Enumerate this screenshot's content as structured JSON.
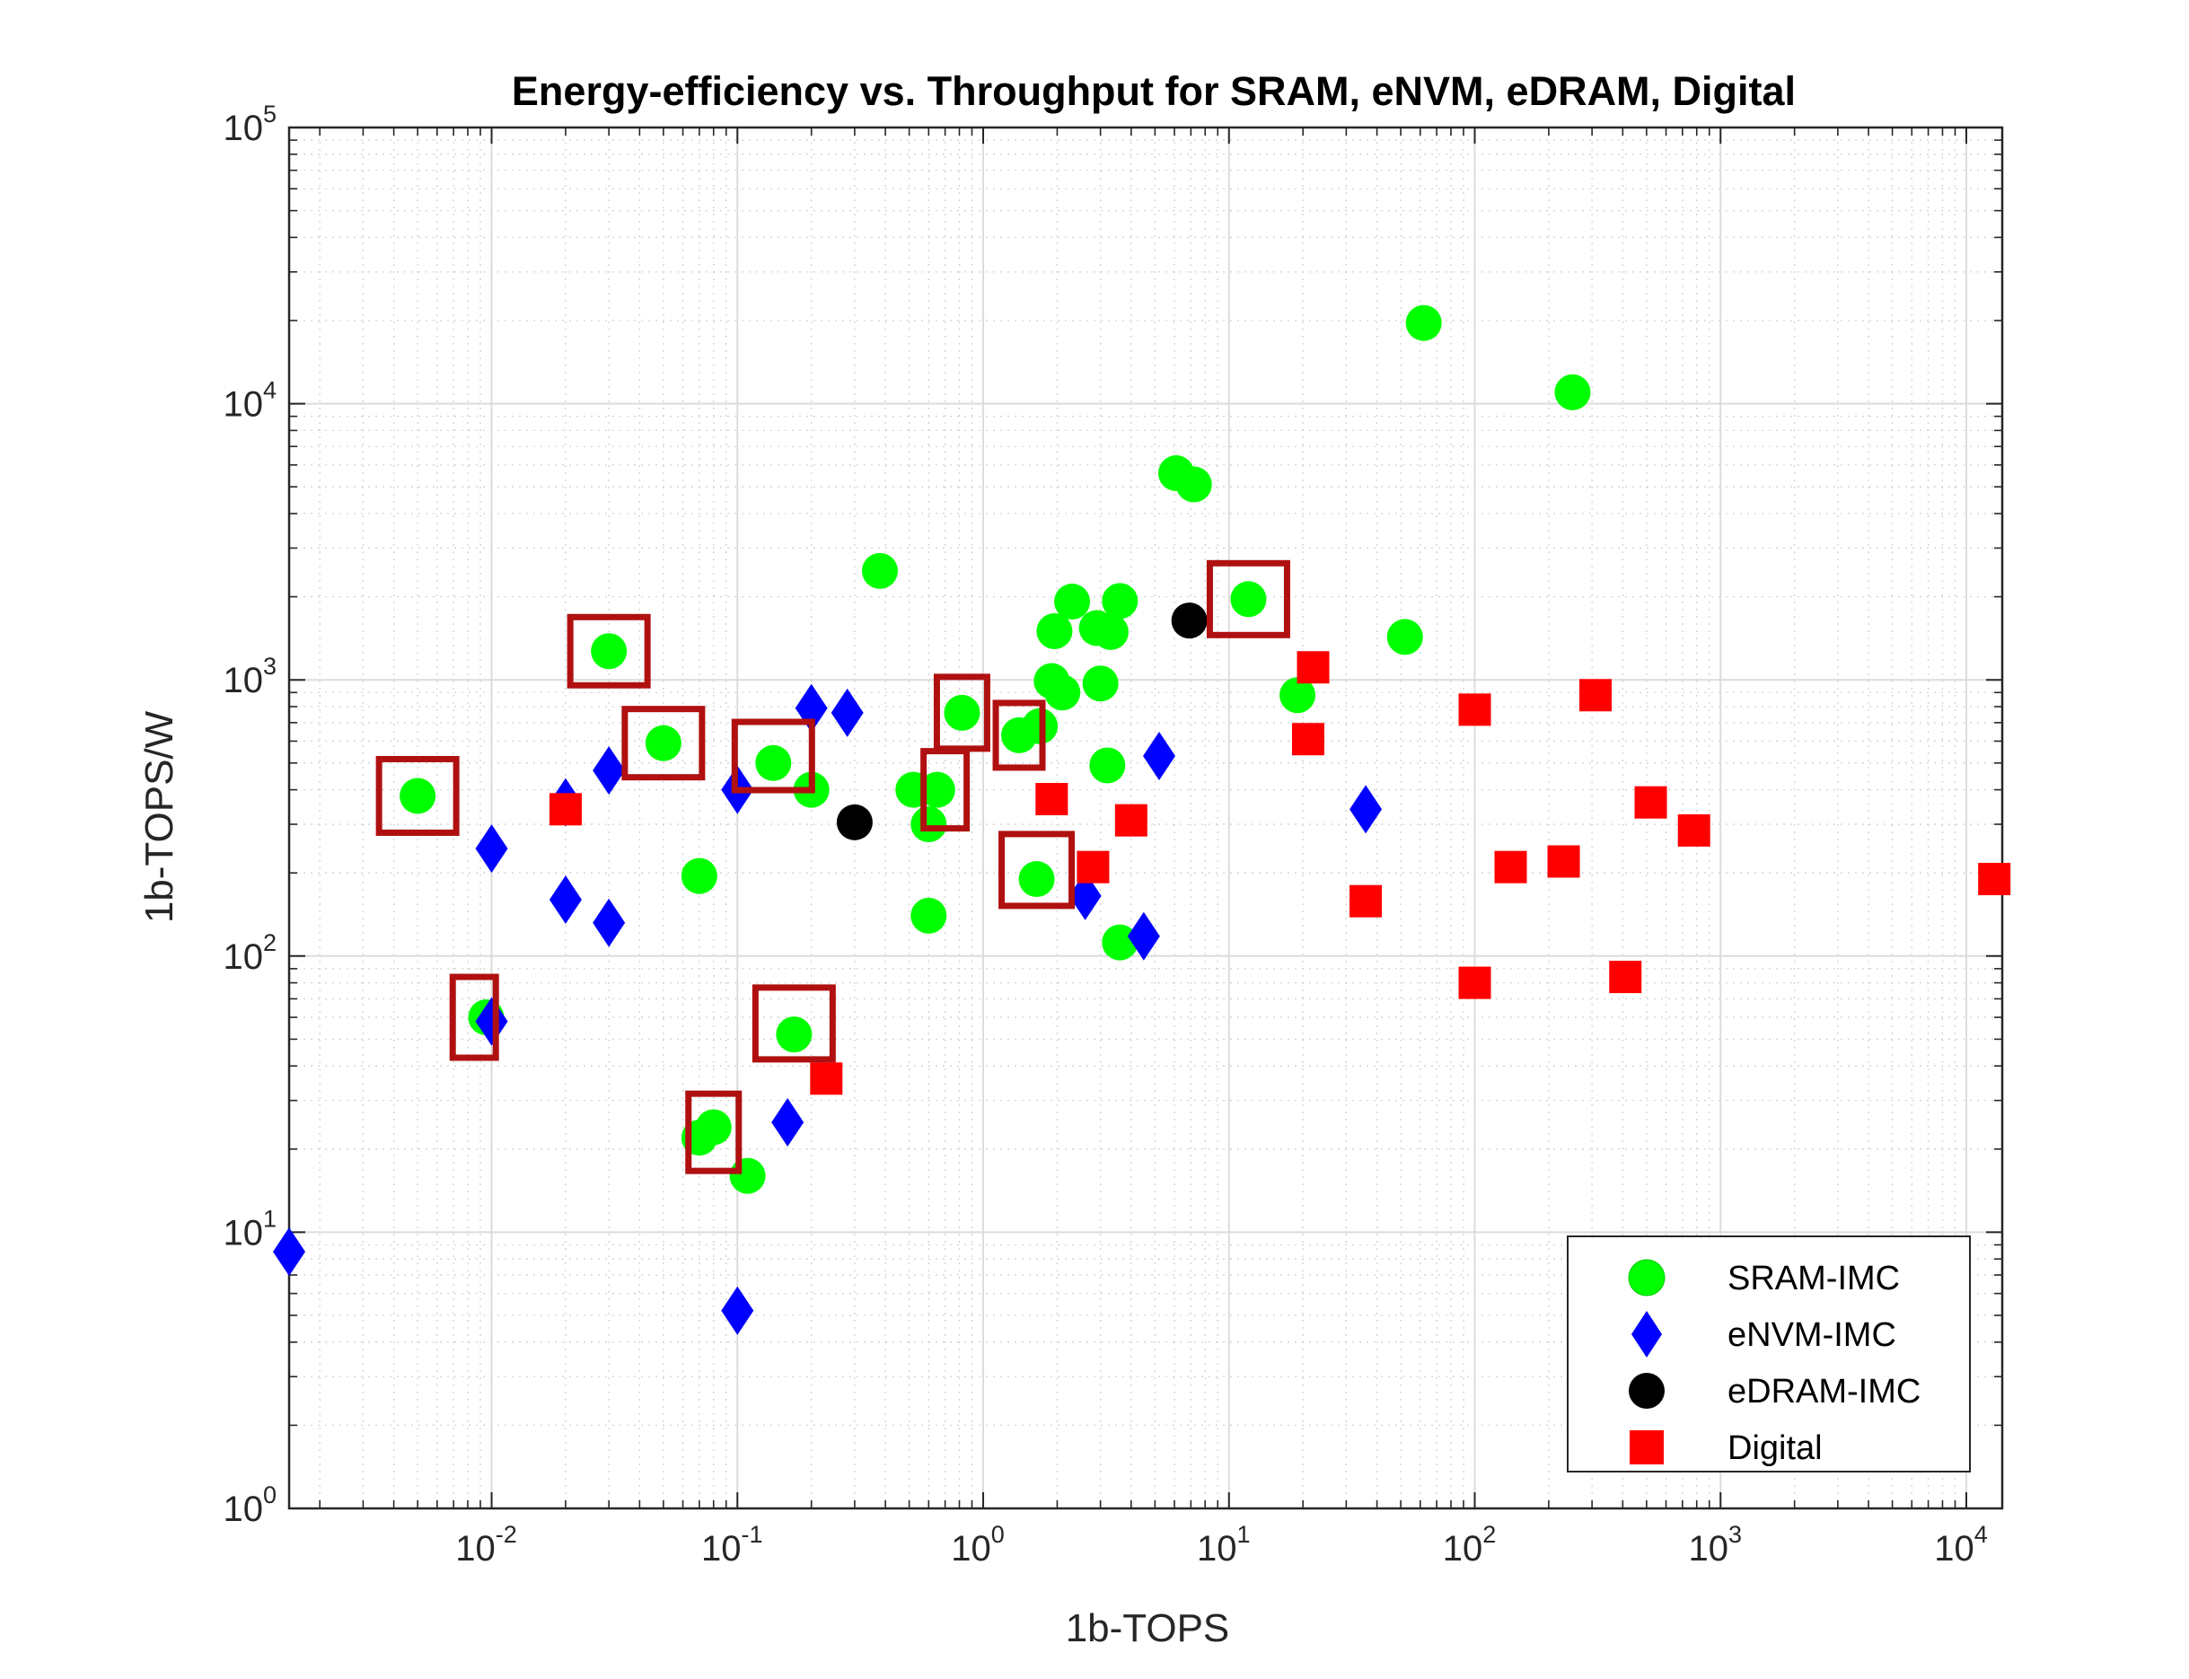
{
  "chart_data": {
    "type": "scatter",
    "title": "Energy-efficiency vs. Throughput for SRAM, eNVM, eDRAM, Digital",
    "xlabel": "1b-TOPS",
    "ylabel": "1b-TOPS/W",
    "xscale": "log",
    "yscale": "log",
    "xlim": [
      0.0015,
      14000
    ],
    "ylim": [
      1,
      100000
    ],
    "grid": "on (major and minor)",
    "legend_position": "bottom-right",
    "x_ticks": [
      {
        "base": "10",
        "exp": "-2",
        "value": 0.01
      },
      {
        "base": "10",
        "exp": "-1",
        "value": 0.1
      },
      {
        "base": "10",
        "exp": "0",
        "value": 1
      },
      {
        "base": "10",
        "exp": "1",
        "value": 10
      },
      {
        "base": "10",
        "exp": "2",
        "value": 100
      },
      {
        "base": "10",
        "exp": "3",
        "value": 1000
      },
      {
        "base": "10",
        "exp": "4",
        "value": 10000
      }
    ],
    "y_ticks": [
      {
        "base": "10",
        "exp": "0",
        "value": 1
      },
      {
        "base": "10",
        "exp": "1",
        "value": 10
      },
      {
        "base": "10",
        "exp": "2",
        "value": 100
      },
      {
        "base": "10",
        "exp": "3",
        "value": 1000
      },
      {
        "base": "10",
        "exp": "4",
        "value": 10000
      },
      {
        "base": "10",
        "exp": "5",
        "value": 100000
      }
    ],
    "series": [
      {
        "name": "SRAM-IMC",
        "marker": "circle",
        "color": "#00ff00",
        "points": [
          [
            0.005,
            380
          ],
          [
            0.03,
            1270
          ],
          [
            0.05,
            590
          ],
          [
            0.14,
            500
          ],
          [
            0.2,
            400
          ],
          [
            0.07,
            195
          ],
          [
            0.0095,
            60
          ],
          [
            0.17,
            52
          ],
          [
            0.08,
            24
          ],
          [
            0.07,
            22
          ],
          [
            0.11,
            16
          ],
          [
            0.38,
            2480
          ],
          [
            0.52,
            400
          ],
          [
            0.65,
            400
          ],
          [
            0.6,
            300
          ],
          [
            0.6,
            140
          ],
          [
            0.82,
            760
          ],
          [
            1.4,
            630
          ],
          [
            1.7,
            680
          ],
          [
            1.65,
            190
          ],
          [
            1.9,
            990
          ],
          [
            2.1,
            900
          ],
          [
            1.95,
            1500
          ],
          [
            2.3,
            1920
          ],
          [
            2.9,
            1540
          ],
          [
            3.3,
            1490
          ],
          [
            3.6,
            1930
          ],
          [
            3.0,
            970
          ],
          [
            3.2,
            490
          ],
          [
            3.6,
            112
          ],
          [
            6.1,
            5600
          ],
          [
            7.2,
            5100
          ],
          [
            12,
            1960
          ],
          [
            19,
            880
          ],
          [
            52,
            1430
          ],
          [
            62,
            19600
          ],
          [
            250,
            11000
          ]
        ]
      },
      {
        "name": "eNVM-IMC",
        "marker": "diamond",
        "color": "#0000ff",
        "points": [
          [
            0.0015,
            8.5
          ],
          [
            0.01,
            245
          ],
          [
            0.01,
            58
          ],
          [
            0.02,
            360
          ],
          [
            0.02,
            160
          ],
          [
            0.03,
            470
          ],
          [
            0.03,
            132
          ],
          [
            0.1,
            400
          ],
          [
            0.1,
            5.2
          ],
          [
            0.16,
            25
          ],
          [
            0.2,
            790
          ],
          [
            0.28,
            760
          ],
          [
            2.6,
            165
          ],
          [
            4.5,
            118
          ],
          [
            5.2,
            530
          ],
          [
            36,
            340
          ]
        ]
      },
      {
        "name": "eDRAM-IMC",
        "marker": "circle",
        "color": "#000000",
        "points": [
          [
            0.3,
            305
          ],
          [
            6.9,
            1640
          ]
        ]
      },
      {
        "name": "Digital",
        "marker": "square",
        "color": "#ff0000",
        "points": [
          [
            0.02,
            340
          ],
          [
            0.23,
            36
          ],
          [
            1.9,
            370
          ],
          [
            2.8,
            210
          ],
          [
            4.0,
            310
          ],
          [
            21,
            610
          ],
          [
            22,
            1110
          ],
          [
            36,
            158
          ],
          [
            100,
            780
          ],
          [
            100,
            80
          ],
          [
            140,
            210
          ],
          [
            230,
            220
          ],
          [
            310,
            880
          ],
          [
            410,
            84
          ],
          [
            520,
            360
          ],
          [
            780,
            285
          ],
          [
            13000,
            190
          ]
        ]
      }
    ],
    "highlight_boxes": [
      [
        0.005,
        380
      ],
      [
        0.03,
        1270
      ],
      [
        0.05,
        590
      ],
      [
        0.14,
        530
      ],
      [
        0.0085,
        60
      ],
      [
        0.17,
        57
      ],
      [
        0.08,
        23
      ],
      [
        0.82,
        760
      ],
      [
        0.7,
        400
      ],
      [
        1.4,
        630
      ],
      [
        1.65,
        205
      ],
      [
        12,
        1960
      ]
    ]
  }
}
